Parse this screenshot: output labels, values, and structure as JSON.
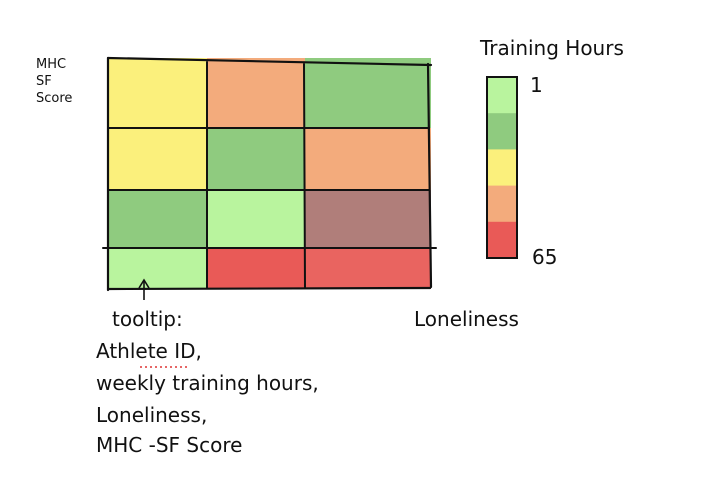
{
  "chart_data": {
    "type": "heatmap",
    "ylabel": [
      "MHC",
      "SF",
      "Score"
    ],
    "xlabel": "Loneliness",
    "rows": 4,
    "cols": 3,
    "cells": [
      [
        "#fbf07c",
        "#f3ab7c",
        "#8fcb7f"
      ],
      [
        "#fbf07c",
        "#8fcb7f",
        "#f3ab7c"
      ],
      [
        "#8fcb7f",
        "#b9f49e",
        "#b07e7a"
      ],
      [
        "#b9f49e",
        "#e95a57",
        "#e96460"
      ]
    ],
    "legend": {
      "title": "Training Hours",
      "min_label": "1",
      "max_label": "65",
      "bands": [
        "#b9f49e",
        "#8fcb7f",
        "#fbf07c",
        "#f3ab7c",
        "#e95a57"
      ]
    }
  },
  "annotation": {
    "title": "tooltip:",
    "lines": [
      "Athlete ID,",
      "weekly training hours,",
      "Loneliness,",
      "MHC -SF Score"
    ]
  }
}
